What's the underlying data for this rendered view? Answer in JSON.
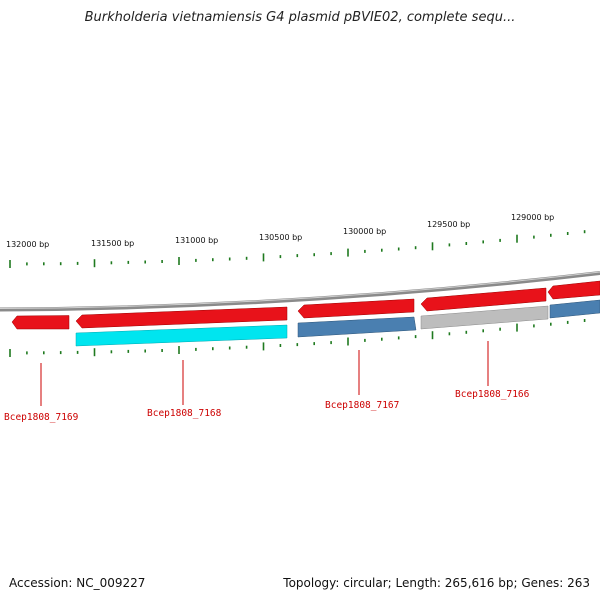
{
  "title": "Burkholderia vietnamiensis G4 plasmid pBVIE02, complete sequ...",
  "footer": {
    "accession": "Accession: NC_009227",
    "topology": "Topology: circular; Length: 265,616 bp; Genes: 263"
  },
  "colors": {
    "forward": "#e8121a",
    "cyan": "#00e5ef",
    "steelblue": "#4a7fb0",
    "grey": "#bdbdbd",
    "backbone": "#8a8a8a",
    "tick": "#1f7a1f",
    "label": "#cc0000"
  },
  "ruler": {
    "labels": [
      "132000 bp",
      "131500 bp",
      "131000 bp",
      "130500 bp",
      "130000 bp",
      "129500 bp",
      "129000 bp"
    ]
  },
  "genes": {
    "labels": [
      "Bcep1808_7169",
      "Bcep1808_7168",
      "Bcep1808_7167",
      "Bcep1808_7166"
    ]
  }
}
